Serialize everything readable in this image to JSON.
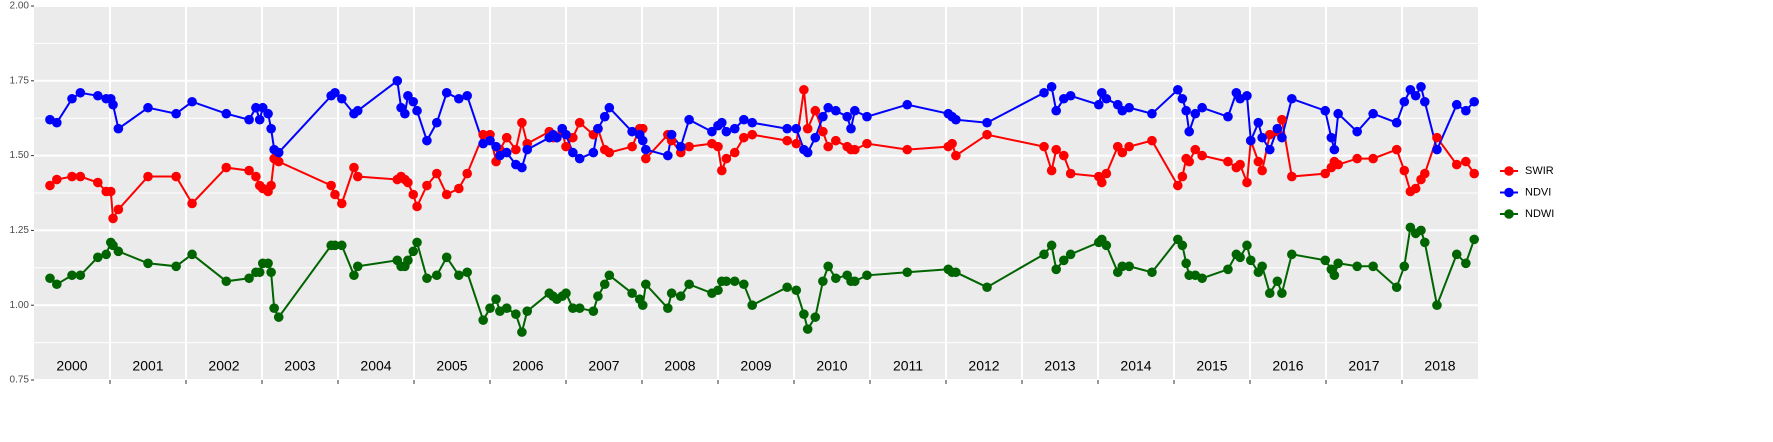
{
  "chart_data": {
    "type": "line",
    "x": [
      2000.21,
      2000.3,
      2000.5,
      2000.61,
      2000.84,
      2000.95,
      2001.01,
      2001.04,
      2001.11,
      2001.5,
      2001.87,
      2002.08,
      2002.53,
      2002.83,
      2002.92,
      2002.97,
      2003.01,
      2003.08,
      2003.12,
      2003.16,
      2003.22,
      2003.91,
      2003.96,
      2004.05,
      2004.21,
      2004.26,
      2004.78,
      2004.83,
      2004.88,
      2004.92,
      2004.99,
      2005.04,
      2005.17,
      2005.3,
      2005.43,
      2005.59,
      2005.7,
      2005.91,
      2006.0,
      2006.08,
      2006.13,
      2006.22,
      2006.34,
      2006.42,
      2006.49,
      2006.78,
      2006.83,
      2006.88,
      2006.95,
      2007.0,
      2007.09,
      2007.18,
      2007.36,
      2007.42,
      2007.51,
      2007.57,
      2007.87,
      2007.97,
      2008.01,
      2008.05,
      2008.34,
      2008.39,
      2008.51,
      2008.62,
      2008.92,
      2009.0,
      2009.05,
      2009.11,
      2009.22,
      2009.34,
      2009.45,
      2009.91,
      2010.03,
      2010.13,
      2010.18,
      2010.28,
      2010.38,
      2010.45,
      2010.55,
      2010.7,
      2010.75,
      2010.8,
      2010.96,
      2011.49,
      2012.03,
      2012.08,
      2012.13,
      2012.54,
      2013.29,
      2013.39,
      2013.45,
      2013.55,
      2013.64,
      2014.01,
      2014.05,
      2014.11,
      2014.26,
      2014.32,
      2014.41,
      2014.71,
      2015.05,
      2015.11,
      2015.16,
      2015.2,
      2015.28,
      2015.37,
      2015.71,
      2015.82,
      2015.87,
      2015.96,
      2016.01,
      2016.11,
      2016.16,
      2016.26,
      2016.36,
      2016.42,
      2016.55,
      2016.99,
      2017.07,
      2017.11,
      2017.16,
      2017.41,
      2017.62,
      2017.93,
      2018.03,
      2018.11,
      2018.18,
      2018.25,
      2018.3,
      2018.46,
      2018.72,
      2018.84,
      2018.95
    ],
    "series": [
      {
        "name": "SWIR",
        "color": "#ff0000",
        "values": [
          1.4,
          1.42,
          1.43,
          1.43,
          1.41,
          1.38,
          1.38,
          1.29,
          1.32,
          1.43,
          1.43,
          1.34,
          1.46,
          1.45,
          1.43,
          1.4,
          1.39,
          1.38,
          1.4,
          1.49,
          1.48,
          1.4,
          1.37,
          1.34,
          1.46,
          1.43,
          1.42,
          1.43,
          1.42,
          1.41,
          1.37,
          1.33,
          1.4,
          1.44,
          1.37,
          1.39,
          1.44,
          1.57,
          1.57,
          1.48,
          1.52,
          1.56,
          1.52,
          1.61,
          1.54,
          1.58,
          1.56,
          1.56,
          1.58,
          1.53,
          1.56,
          1.61,
          1.57,
          1.59,
          1.52,
          1.51,
          1.53,
          1.59,
          1.59,
          1.49,
          1.57,
          1.55,
          1.51,
          1.53,
          1.54,
          1.53,
          1.45,
          1.49,
          1.51,
          1.56,
          1.57,
          1.55,
          1.54,
          1.72,
          1.59,
          1.65,
          1.58,
          1.53,
          1.55,
          1.53,
          1.52,
          1.52,
          1.54,
          1.52,
          1.53,
          1.54,
          1.5,
          1.57,
          1.53,
          1.45,
          1.52,
          1.5,
          1.44,
          1.43,
          1.41,
          1.44,
          1.53,
          1.51,
          1.53,
          1.55,
          1.4,
          1.43,
          1.49,
          1.48,
          1.52,
          1.5,
          1.48,
          1.46,
          1.47,
          1.41,
          1.55,
          1.48,
          1.45,
          1.57,
          1.58,
          1.62,
          1.43,
          1.44,
          1.46,
          1.48,
          1.47,
          1.49,
          1.49,
          1.52,
          1.45,
          1.38,
          1.39,
          1.42,
          1.44,
          1.56,
          1.47,
          1.48,
          1.44
        ]
      },
      {
        "name": "NDVI",
        "color": "#0000ff",
        "values": [
          1.62,
          1.61,
          1.69,
          1.71,
          1.7,
          1.69,
          1.69,
          1.67,
          1.59,
          1.66,
          1.64,
          1.68,
          1.64,
          1.62,
          1.66,
          1.62,
          1.66,
          1.64,
          1.59,
          1.52,
          1.51,
          1.7,
          1.71,
          1.69,
          1.64,
          1.65,
          1.75,
          1.66,
          1.64,
          1.7,
          1.68,
          1.65,
          1.55,
          1.61,
          1.71,
          1.69,
          1.7,
          1.54,
          1.55,
          1.53,
          1.5,
          1.51,
          1.47,
          1.46,
          1.52,
          1.56,
          1.57,
          1.56,
          1.59,
          1.57,
          1.51,
          1.49,
          1.51,
          1.59,
          1.63,
          1.66,
          1.58,
          1.57,
          1.55,
          1.52,
          1.5,
          1.57,
          1.53,
          1.62,
          1.58,
          1.6,
          1.61,
          1.58,
          1.59,
          1.62,
          1.61,
          1.59,
          1.59,
          1.52,
          1.51,
          1.56,
          1.63,
          1.66,
          1.65,
          1.63,
          1.59,
          1.65,
          1.63,
          1.67,
          1.64,
          1.63,
          1.62,
          1.61,
          1.71,
          1.73,
          1.65,
          1.69,
          1.7,
          1.67,
          1.71,
          1.69,
          1.67,
          1.65,
          1.66,
          1.64,
          1.72,
          1.69,
          1.65,
          1.58,
          1.64,
          1.66,
          1.63,
          1.71,
          1.69,
          1.7,
          1.55,
          1.61,
          1.56,
          1.52,
          1.59,
          1.56,
          1.69,
          1.65,
          1.56,
          1.52,
          1.64,
          1.58,
          1.64,
          1.61,
          1.68,
          1.72,
          1.7,
          1.73,
          1.68,
          1.52,
          1.67,
          1.65,
          1.68
        ]
      },
      {
        "name": "NDWI",
        "color": "#006400",
        "values": [
          1.09,
          1.07,
          1.1,
          1.1,
          1.16,
          1.17,
          1.21,
          1.2,
          1.18,
          1.14,
          1.13,
          1.17,
          1.08,
          1.09,
          1.11,
          1.11,
          1.14,
          1.14,
          1.11,
          0.99,
          0.96,
          1.2,
          1.2,
          1.2,
          1.1,
          1.13,
          1.15,
          1.13,
          1.13,
          1.15,
          1.18,
          1.21,
          1.09,
          1.1,
          1.16,
          1.1,
          1.11,
          0.95,
          0.99,
          1.02,
          0.98,
          0.99,
          0.97,
          0.91,
          0.98,
          1.04,
          1.03,
          1.02,
          1.03,
          1.04,
          0.99,
          0.99,
          0.98,
          1.03,
          1.07,
          1.1,
          1.04,
          1.02,
          1.0,
          1.07,
          0.99,
          1.04,
          1.03,
          1.07,
          1.04,
          1.05,
          1.08,
          1.08,
          1.08,
          1.07,
          1.0,
          1.06,
          1.05,
          0.97,
          0.92,
          0.96,
          1.08,
          1.13,
          1.09,
          1.1,
          1.08,
          1.08,
          1.1,
          1.11,
          1.12,
          1.11,
          1.11,
          1.06,
          1.17,
          1.2,
          1.12,
          1.15,
          1.17,
          1.21,
          1.22,
          1.2,
          1.11,
          1.13,
          1.13,
          1.11,
          1.22,
          1.2,
          1.14,
          1.1,
          1.1,
          1.09,
          1.12,
          1.17,
          1.16,
          1.2,
          1.15,
          1.11,
          1.13,
          1.04,
          1.08,
          1.04,
          1.17,
          1.15,
          1.12,
          1.1,
          1.14,
          1.13,
          1.13,
          1.06,
          1.13,
          1.26,
          1.24,
          1.25,
          1.21,
          1.0,
          1.17,
          1.14,
          1.22
        ]
      }
    ],
    "xlim": [
      2000,
      2019
    ],
    "xticks": [
      {
        "value": 2000.5,
        "label": "2000"
      },
      {
        "value": 2001.5,
        "label": "2001"
      },
      {
        "value": 2002.5,
        "label": "2002"
      },
      {
        "value": 2003.5,
        "label": "2003"
      },
      {
        "value": 2004.5,
        "label": "2004"
      },
      {
        "value": 2005.5,
        "label": "2005"
      },
      {
        "value": 2006.5,
        "label": "2006"
      },
      {
        "value": 2007.5,
        "label": "2007"
      },
      {
        "value": 2008.5,
        "label": "2008"
      },
      {
        "value": 2009.5,
        "label": "2009"
      },
      {
        "value": 2010.5,
        "label": "2010"
      },
      {
        "value": 2011.5,
        "label": "2011"
      },
      {
        "value": 2012.5,
        "label": "2012"
      },
      {
        "value": 2013.5,
        "label": "2013"
      },
      {
        "value": 2014.5,
        "label": "2014"
      },
      {
        "value": 2015.5,
        "label": "2015"
      },
      {
        "value": 2016.5,
        "label": "2016"
      },
      {
        "value": 2017.5,
        "label": "2017"
      },
      {
        "value": 2018.5,
        "label": "2018"
      }
    ],
    "ylim": [
      0.75,
      2.0
    ],
    "yticks": [
      {
        "value": 0.75,
        "label": "0.75"
      },
      {
        "value": 1.0,
        "label": "1.00"
      },
      {
        "value": 1.25,
        "label": "1.25"
      },
      {
        "value": 1.5,
        "label": "1.50"
      },
      {
        "value": 1.75,
        "label": "1.75"
      },
      {
        "value": 2.0,
        "label": "2.00"
      }
    ],
    "grid": true,
    "legend": "right"
  }
}
